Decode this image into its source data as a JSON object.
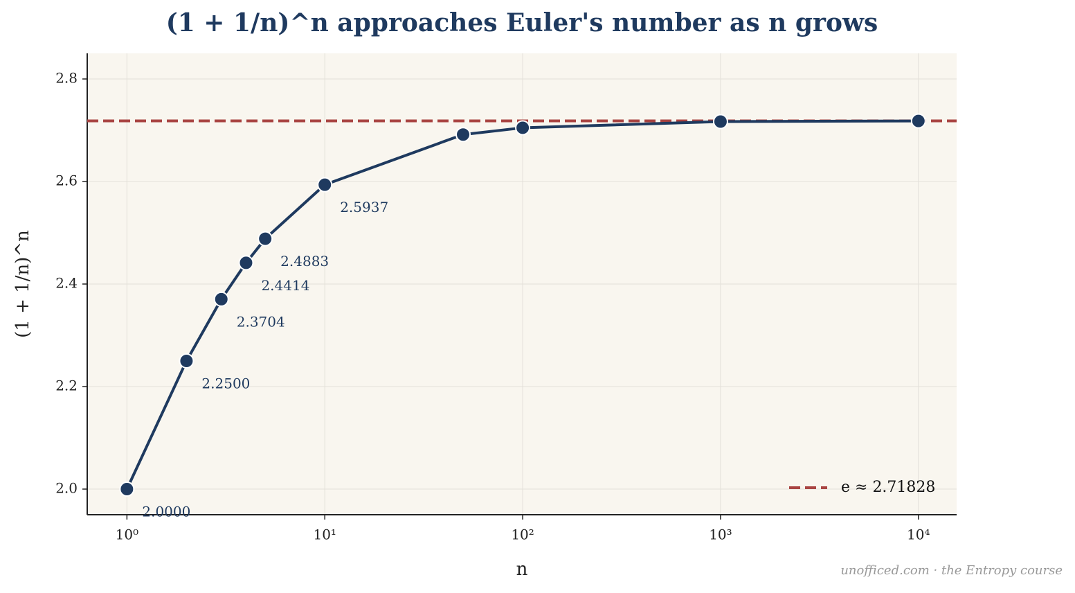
{
  "chart_data": {
    "type": "line",
    "title": "(1 + 1/n)^n approaches Euler's number as n grows",
    "x_label": "n",
    "y_label": "(1 + 1/n)^n",
    "footer": "unofficed.com · the Entropy course",
    "x": [
      1,
      2,
      3,
      4,
      5,
      10,
      50,
      100,
      1000,
      10000
    ],
    "series": [
      {
        "name": "(1 + 1/n)^n",
        "color": "#1f3a5f",
        "values": [
          2.0,
          2.25,
          2.3704,
          2.4414,
          2.4883,
          2.5937,
          2.6916,
          2.7048,
          2.7169,
          2.7181
        ],
        "value_labels": [
          "2.0000",
          "2.2500",
          "2.3704",
          "2.4414",
          "2.4883",
          "2.5937",
          null,
          null,
          null,
          null
        ]
      }
    ],
    "reference_line": {
      "value": 2.71828,
      "label": "e ≈ 2.71828",
      "color": "#a94442"
    },
    "x_log": true,
    "xlim": [
      0.63,
      15600
    ],
    "ylim": [
      1.95,
      2.85
    ],
    "xticks": [
      {
        "value": 1,
        "label": "10⁰"
      },
      {
        "value": 10,
        "label": "10¹"
      },
      {
        "value": 100,
        "label": "10²"
      },
      {
        "value": 1000,
        "label": "10³"
      },
      {
        "value": 10000,
        "label": "10⁴"
      }
    ],
    "yticks": [
      {
        "value": 2.0,
        "label": "2.0"
      },
      2.2,
      2.4,
      2.6,
      2.8
    ],
    "grid": true,
    "legend": "lower right"
  }
}
